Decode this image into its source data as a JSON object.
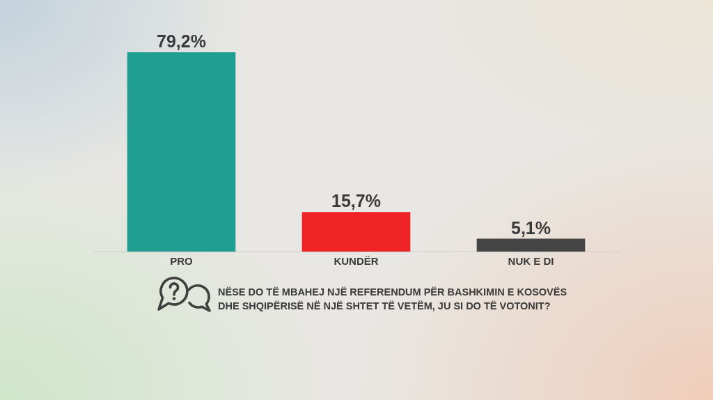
{
  "chart_data": {
    "type": "bar",
    "title": "NËSE DO TË MBAHEJ NJË REFERENDUM PËR BASHKIMIN E KOSOVËS DHE SHQIPËRISË NË NJË SHTET TË VETËM, JU SI DO TË VOTONIT?",
    "categories": [
      "PRO",
      "KUNDËR",
      "NUK E DI"
    ],
    "values": [
      79.2,
      15.7,
      5.1
    ],
    "colors": [
      "#1f9e91",
      "#ee2326",
      "#444444"
    ],
    "value_labels": [
      "79,2%",
      "15,7%",
      "5,1%"
    ],
    "ylim": [
      0,
      80
    ],
    "tick_labels": "x",
    "grid": false,
    "legend": false
  }
}
